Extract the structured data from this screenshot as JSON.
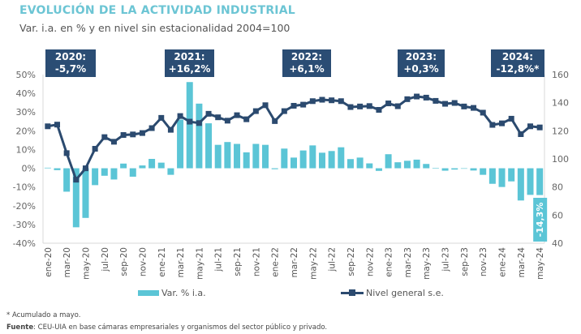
{
  "title": "EVOLUCIÓN DE LA ACTIVIDAD INDUSTRIAL",
  "subtitle": "Var. i.a. en % y en nivel sin estacionalidad 2004=100",
  "annotations": [
    {
      "year": "2020:",
      "value": "-5,7%"
    },
    {
      "year": "2021:",
      "value": "+16,2%"
    },
    {
      "year": "2022:",
      "value": "+6,1%"
    },
    {
      "year": "2023:",
      "value": "+0,3%"
    },
    {
      "year": "2024:",
      "value": "-12,8%*"
    }
  ],
  "last_bar_label": "-14,3%",
  "footnote": "* Acumulado a mayo.",
  "source_label": "Fuente",
  "source_text": ": CEU-UIA en base cámaras empresariales y organismos del sector público y privado.",
  "colors": {
    "bars": "#5bc5d6",
    "line": "#2b4a6f",
    "title": "#6cc5d4",
    "annotation_box": "#2b4d74"
  },
  "chart_data": {
    "type": "bar+line",
    "categories": [
      "ene-20",
      "feb-20",
      "mar-20",
      "abr-20",
      "may-20",
      "jun-20",
      "jul-20",
      "ago-20",
      "sep-20",
      "oct-20",
      "nov-20",
      "dic-20",
      "ene-21",
      "feb-21",
      "mar-21",
      "abr-21",
      "may-21",
      "jun-21",
      "jul-21",
      "ago-21",
      "sep-21",
      "oct-21",
      "nov-21",
      "dic-21",
      "ene-22",
      "feb-22",
      "mar-22",
      "abr-22",
      "may-22",
      "jun-22",
      "jul-22",
      "ago-22",
      "sep-22",
      "oct-22",
      "nov-22",
      "dic-22",
      "ene-23",
      "feb-23",
      "mar-23",
      "abr-23",
      "may-23",
      "jun-23",
      "jul-23",
      "ago-23",
      "sep-23",
      "oct-23",
      "nov-23",
      "dic-23",
      "ene-24",
      "feb-24",
      "mar-24",
      "abr-24",
      "may-24"
    ],
    "tick_labels": [
      "ene-20",
      "mar-20",
      "may-20",
      "jul-20",
      "sep-20",
      "nov-20",
      "ene-21",
      "mar-21",
      "may-21",
      "jul-21",
      "sep-21",
      "nov-21",
      "ene-22",
      "mar-22",
      "may-22",
      "jul-22",
      "sep-22",
      "nov-22",
      "ene-23",
      "mar-23",
      "may-23",
      "jul-23",
      "sep-23",
      "nov-23",
      "ene-24",
      "mar-24",
      "may-24"
    ],
    "series": [
      {
        "name": "Var. % i.a.",
        "type": "bar",
        "axis": "left",
        "values": [
          0.3,
          -1,
          -12.5,
          -31.5,
          -26.5,
          -9,
          -4,
          -6,
          2.5,
          -4.5,
          1.5,
          5,
          3,
          -3.5,
          26,
          46,
          34.5,
          24,
          12.5,
          14,
          13,
          8.5,
          13,
          12.5,
          -0.5,
          10.5,
          5.7,
          9.5,
          12.2,
          8.3,
          9.2,
          11.2,
          4.9,
          5.7,
          2.6,
          -1.4,
          7.5,
          3.2,
          4,
          4.6,
          2.3,
          0.1,
          -1.3,
          -0.7,
          -0.2,
          -1.2,
          -3.5,
          -8.3,
          -10,
          -7,
          -17.2,
          -14.2,
          -14.3
        ]
      },
      {
        "name": "Nivel general s.e.",
        "type": "line",
        "axis": "right",
        "values": [
          123.2,
          124.4,
          104.1,
          85.2,
          93.3,
          107.2,
          115.5,
          112.2,
          117.0,
          117.4,
          118.4,
          121.9,
          129.2,
          120.7,
          130.5,
          126.5,
          125.5,
          132.1,
          129.6,
          127.2,
          131.1,
          128.2,
          134.0,
          138.2,
          126.9,
          134.0,
          137.8,
          138.6,
          141.1,
          142.1,
          141.7,
          141.1,
          136.9,
          137.3,
          137.6,
          134.9,
          139.5,
          137.5,
          142.5,
          144.4,
          143.6,
          141.3,
          139.2,
          139.8,
          137.3,
          136.3,
          132.9,
          124.2,
          125.3,
          128.6,
          117.6,
          123.2,
          122.4
        ]
      }
    ],
    "left_axis": {
      "min": -40,
      "max": 50,
      "step": 10,
      "tick_labels": [
        "-40%",
        "-30%",
        "-20%",
        "-10%",
        "0%",
        "10%",
        "20%",
        "30%",
        "40%",
        "50%"
      ]
    },
    "right_axis": {
      "min": 40,
      "max": 160,
      "step": 20,
      "tick_labels": [
        "40",
        "60",
        "80",
        "100",
        "120",
        "140",
        "160"
      ]
    },
    "legend": {
      "position": "bottom",
      "items": [
        "Var. % i.a.",
        "Nivel general s.e."
      ]
    },
    "grid": false
  }
}
